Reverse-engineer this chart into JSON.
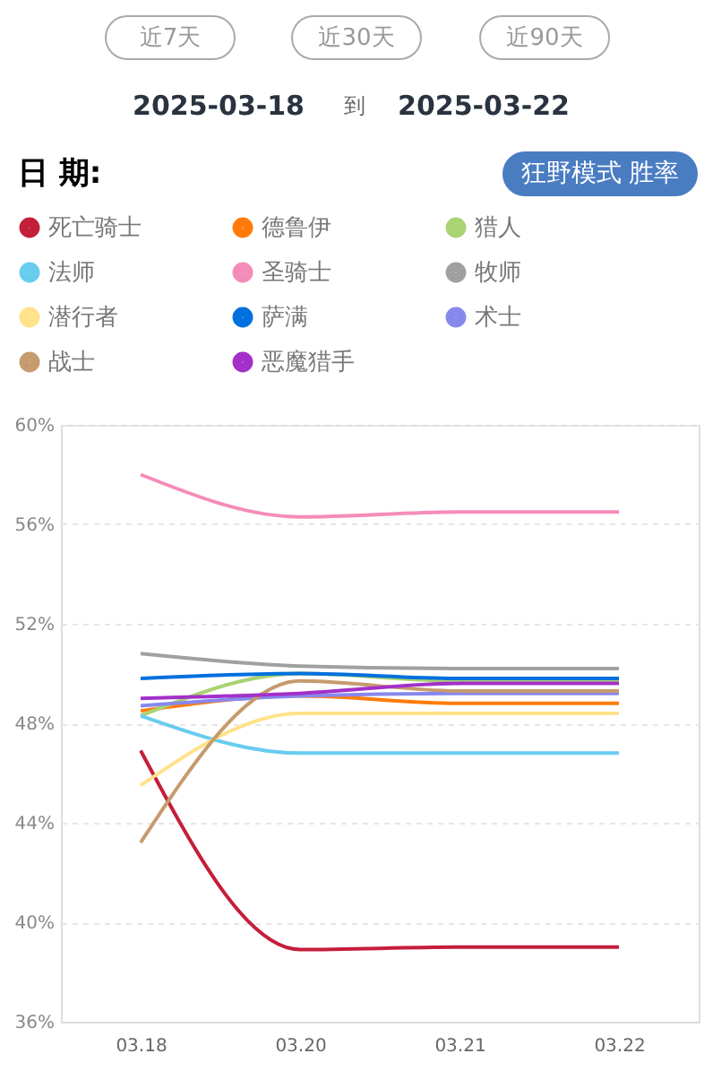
{
  "chart_data": {
    "type": "line",
    "title": "日 期:",
    "subtitle": "狂野模式 胜率",
    "annotations": [
      "近7天",
      "近30天",
      "近90天",
      "2025-03-18",
      "到",
      "2025-03-22"
    ],
    "categories": [
      "03.18",
      "03.20",
      "03.21",
      "03.22"
    ],
    "series": [
      {
        "name": "死亡骑士",
        "color": "#c41e3a",
        "values": [
          46.9,
          38.9,
          39.0,
          39.0
        ]
      },
      {
        "name": "德鲁伊",
        "color": "#ff7c0a",
        "values": [
          48.5,
          49.1,
          48.8,
          48.8
        ]
      },
      {
        "name": "猎人",
        "color": "#aad372",
        "values": [
          48.3,
          50.0,
          49.7,
          49.7
        ]
      },
      {
        "name": "法师",
        "color": "#68ccef",
        "values": [
          48.3,
          46.8,
          46.8,
          46.8
        ]
      },
      {
        "name": "圣骑士",
        "color": "#f48cba",
        "values": [
          58.0,
          56.3,
          56.5,
          56.5
        ]
      },
      {
        "name": "牧师",
        "color": "#a0a0a0",
        "values": [
          50.8,
          50.3,
          50.2,
          50.2
        ]
      },
      {
        "name": "潜行者",
        "color": "#ffe28a",
        "values": [
          45.5,
          48.4,
          48.4,
          48.4
        ]
      },
      {
        "name": "萨满",
        "color": "#0070dd",
        "values": [
          49.8,
          50.0,
          49.8,
          49.8
        ]
      },
      {
        "name": "术士",
        "color": "#8788ee",
        "values": [
          48.7,
          49.1,
          49.2,
          49.2
        ]
      },
      {
        "name": "战士",
        "color": "#c69b6d",
        "values": [
          43.2,
          49.7,
          49.3,
          49.3
        ]
      },
      {
        "name": "恶魔猎手",
        "color": "#a330c9",
        "values": [
          49.0,
          49.2,
          49.6,
          49.6
        ]
      }
    ],
    "ylim": [
      36,
      60
    ],
    "yticks": [
      {
        "value": 36,
        "label": "36%"
      },
      {
        "value": 40,
        "label": "40%"
      },
      {
        "value": 44,
        "label": "44%"
      },
      {
        "value": 48,
        "label": "48%"
      },
      {
        "value": 52,
        "label": "52%"
      },
      {
        "value": 56,
        "label": "56%"
      },
      {
        "value": 60,
        "label": "60%"
      }
    ],
    "grid": "y",
    "legend": "top",
    "marker": "none",
    "line_style": "solid"
  }
}
